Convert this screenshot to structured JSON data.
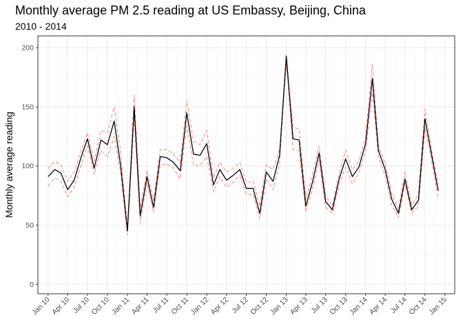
{
  "chart_data": {
    "type": "line",
    "title": "Monthly average PM 2.5 reading at US Embassy, Beijing, China",
    "subtitle": "2010 - 2014",
    "xlabel": "",
    "ylabel": "Monthly average reading",
    "ylim": [
      -8,
      210
    ],
    "xlim": [
      "2009-11-15",
      "2015-02-15"
    ],
    "yticks": [
      0,
      50,
      100,
      150,
      200
    ],
    "xticks": [
      "2010-01-01",
      "2010-04-01",
      "2010-07-01",
      "2010-10-01",
      "2011-01-01",
      "2011-04-01",
      "2011-07-01",
      "2011-10-01",
      "2012-01-01",
      "2012-04-01",
      "2012-07-01",
      "2012-10-01",
      "2013-01-01",
      "2013-04-01",
      "2013-07-01",
      "2013-10-01",
      "2014-01-01",
      "2014-04-01",
      "2014-07-01",
      "2014-10-01",
      "2015-01-01"
    ],
    "xtick_labels": [
      "Jan 10",
      "Apr 10",
      "Jul 10",
      "Oct 10",
      "Jan 11",
      "Apr 11",
      "Jul 11",
      "Oct 11",
      "Jan 12",
      "Apr 12",
      "Jul 12",
      "Oct 12",
      "Jan 13",
      "Apr 13",
      "Jul 13",
      "Oct 13",
      "Jan 14",
      "Apr 14",
      "Jul 14",
      "Oct 14",
      "Jan 15"
    ],
    "grid": true,
    "legend": "none",
    "x": [
      "2010-01-01",
      "2010-02-01",
      "2010-03-01",
      "2010-04-01",
      "2010-05-01",
      "2010-06-01",
      "2010-07-01",
      "2010-08-01",
      "2010-09-01",
      "2010-10-01",
      "2010-11-01",
      "2010-12-01",
      "2011-01-01",
      "2011-02-01",
      "2011-03-01",
      "2011-04-01",
      "2011-05-01",
      "2011-06-01",
      "2011-07-01",
      "2011-08-01",
      "2011-09-01",
      "2011-10-01",
      "2011-11-01",
      "2011-12-01",
      "2012-01-01",
      "2012-02-01",
      "2012-03-01",
      "2012-04-01",
      "2012-05-01",
      "2012-06-01",
      "2012-07-01",
      "2012-08-01",
      "2012-09-01",
      "2012-10-01",
      "2012-11-01",
      "2012-12-01",
      "2013-01-01",
      "2013-02-01",
      "2013-03-01",
      "2013-04-01",
      "2013-05-01",
      "2013-06-01",
      "2013-07-01",
      "2013-08-01",
      "2013-09-01",
      "2013-10-01",
      "2013-11-01",
      "2013-12-01",
      "2014-01-01",
      "2014-02-01",
      "2014-03-01",
      "2014-04-01",
      "2014-05-01",
      "2014-06-01",
      "2014-07-01",
      "2014-08-01",
      "2014-09-01",
      "2014-10-01",
      "2014-11-01",
      "2014-12-01"
    ],
    "series": [
      {
        "color": "#000000",
        "dash": "solid",
        "values": [
          91,
          97,
          94,
          80,
          88,
          107,
          123,
          98,
          122,
          118,
          138,
          100,
          45,
          150,
          58,
          91,
          65,
          108,
          107,
          103,
          96,
          145,
          110,
          109,
          119,
          84,
          97,
          88,
          92,
          97,
          81,
          81,
          60,
          95,
          87,
          109,
          193,
          123,
          122,
          66,
          86,
          111,
          70,
          63,
          89,
          106,
          91,
          99,
          119,
          174,
          113,
          97,
          72,
          60,
          89,
          63,
          71,
          140,
          109,
          79
        ]
      },
      {
        "color": "#f8766d",
        "dash": "dashed",
        "values": [
          98,
          104,
          101,
          87,
          95,
          113,
          128,
          104,
          130,
          128,
          150,
          112,
          47,
          160,
          65,
          96,
          71,
          114,
          114,
          110,
          103,
          156,
          121,
          118,
          130,
          90,
          103,
          95,
          98,
          103,
          86,
          87,
          66,
          101,
          97,
          114,
          186,
          133,
          131,
          72,
          93,
          117,
          75,
          66,
          94,
          113,
          97,
          104,
          125,
          186,
          117,
          102,
          77,
          63,
          95,
          67,
          76,
          148,
          113,
          84
        ]
      },
      {
        "color": "#f8766d",
        "dash": "dashed",
        "values": [
          83,
          90,
          87,
          74,
          82,
          100,
          117,
          93,
          113,
          108,
          125,
          94,
          42,
          142,
          52,
          86,
          61,
          101,
          102,
          98,
          89,
          134,
          101,
          100,
          108,
          78,
          91,
          82,
          86,
          92,
          76,
          76,
          55,
          89,
          80,
          102,
          190,
          114,
          113,
          61,
          80,
          105,
          65,
          60,
          84,
          99,
          85,
          94,
          113,
          162,
          108,
          92,
          67,
          56,
          85,
          60,
          66,
          132,
          104,
          72
        ]
      }
    ]
  }
}
